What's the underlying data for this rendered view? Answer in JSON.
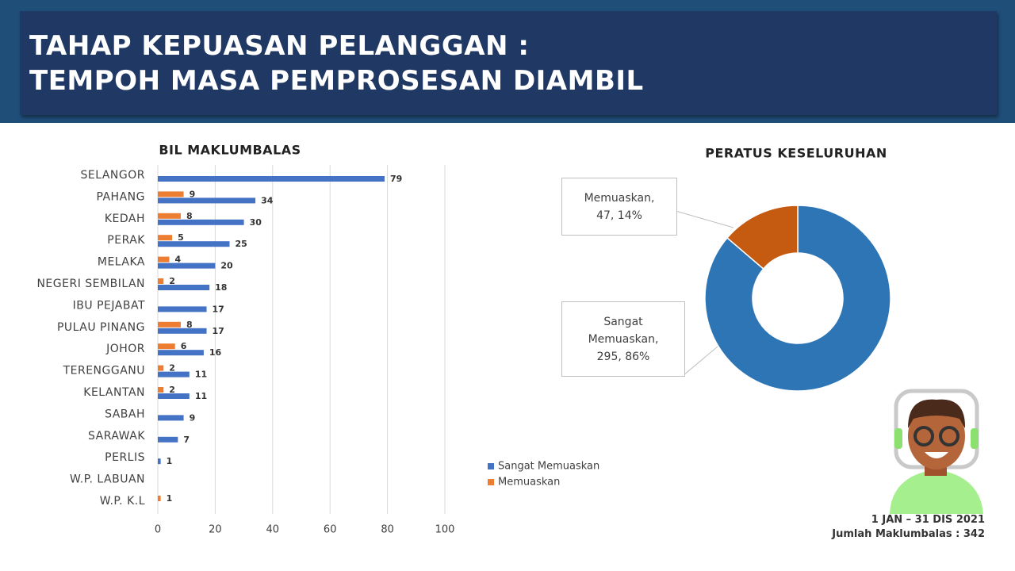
{
  "header": {
    "title_lines": [
      "TAHAP KEPUASAN PELANGGAN :",
      "TEMPOH MASA PEMPROSESAN DIAMBIL"
    ]
  },
  "chart_data": [
    {
      "type": "hbar",
      "title": "BIL MAKLUMBALAS",
      "categories": [
        "SELANGOR",
        "PAHANG",
        "KEDAH",
        "PERAK",
        "MELAKA",
        "NEGERI SEMBILAN",
        "IBU PEJABAT",
        "PULAU PINANG",
        "JOHOR",
        "TERENGGANU",
        "KELANTAN",
        "SABAH",
        "SARAWAK",
        "PERLIS",
        "W.P. LABUAN",
        "W.P. K.L"
      ],
      "series": [
        {
          "name": "Sangat Memuaskan",
          "color": "#4472c4",
          "values": [
            79,
            34,
            30,
            25,
            20,
            18,
            17,
            17,
            16,
            11,
            11,
            9,
            7,
            1,
            null,
            null
          ]
        },
        {
          "name": "Memuaskan",
          "color": "#ed7d31",
          "values": [
            null,
            9,
            8,
            5,
            4,
            2,
            null,
            8,
            6,
            2,
            2,
            null,
            null,
            null,
            null,
            1
          ]
        }
      ],
      "xlim": [
        0,
        100
      ],
      "xticks": [
        0,
        20,
        40,
        60,
        80,
        100
      ],
      "grid": true
    },
    {
      "type": "donut",
      "title": "PERATUS KESELURUHAN",
      "categories": [
        "Sangat Memuaskan",
        "Memuaskan"
      ],
      "values": [
        295,
        47
      ],
      "colors": [
        "#2e75b6",
        "#c55a11"
      ],
      "value_labels": [
        "Sangat Memuaskan, 295, 86%",
        "Memuaskan, 47, 14%"
      ]
    }
  ],
  "footer": {
    "period": "1 JAN – 31 DIS 2021",
    "total": "Jumlah Maklumbalas : 342"
  }
}
